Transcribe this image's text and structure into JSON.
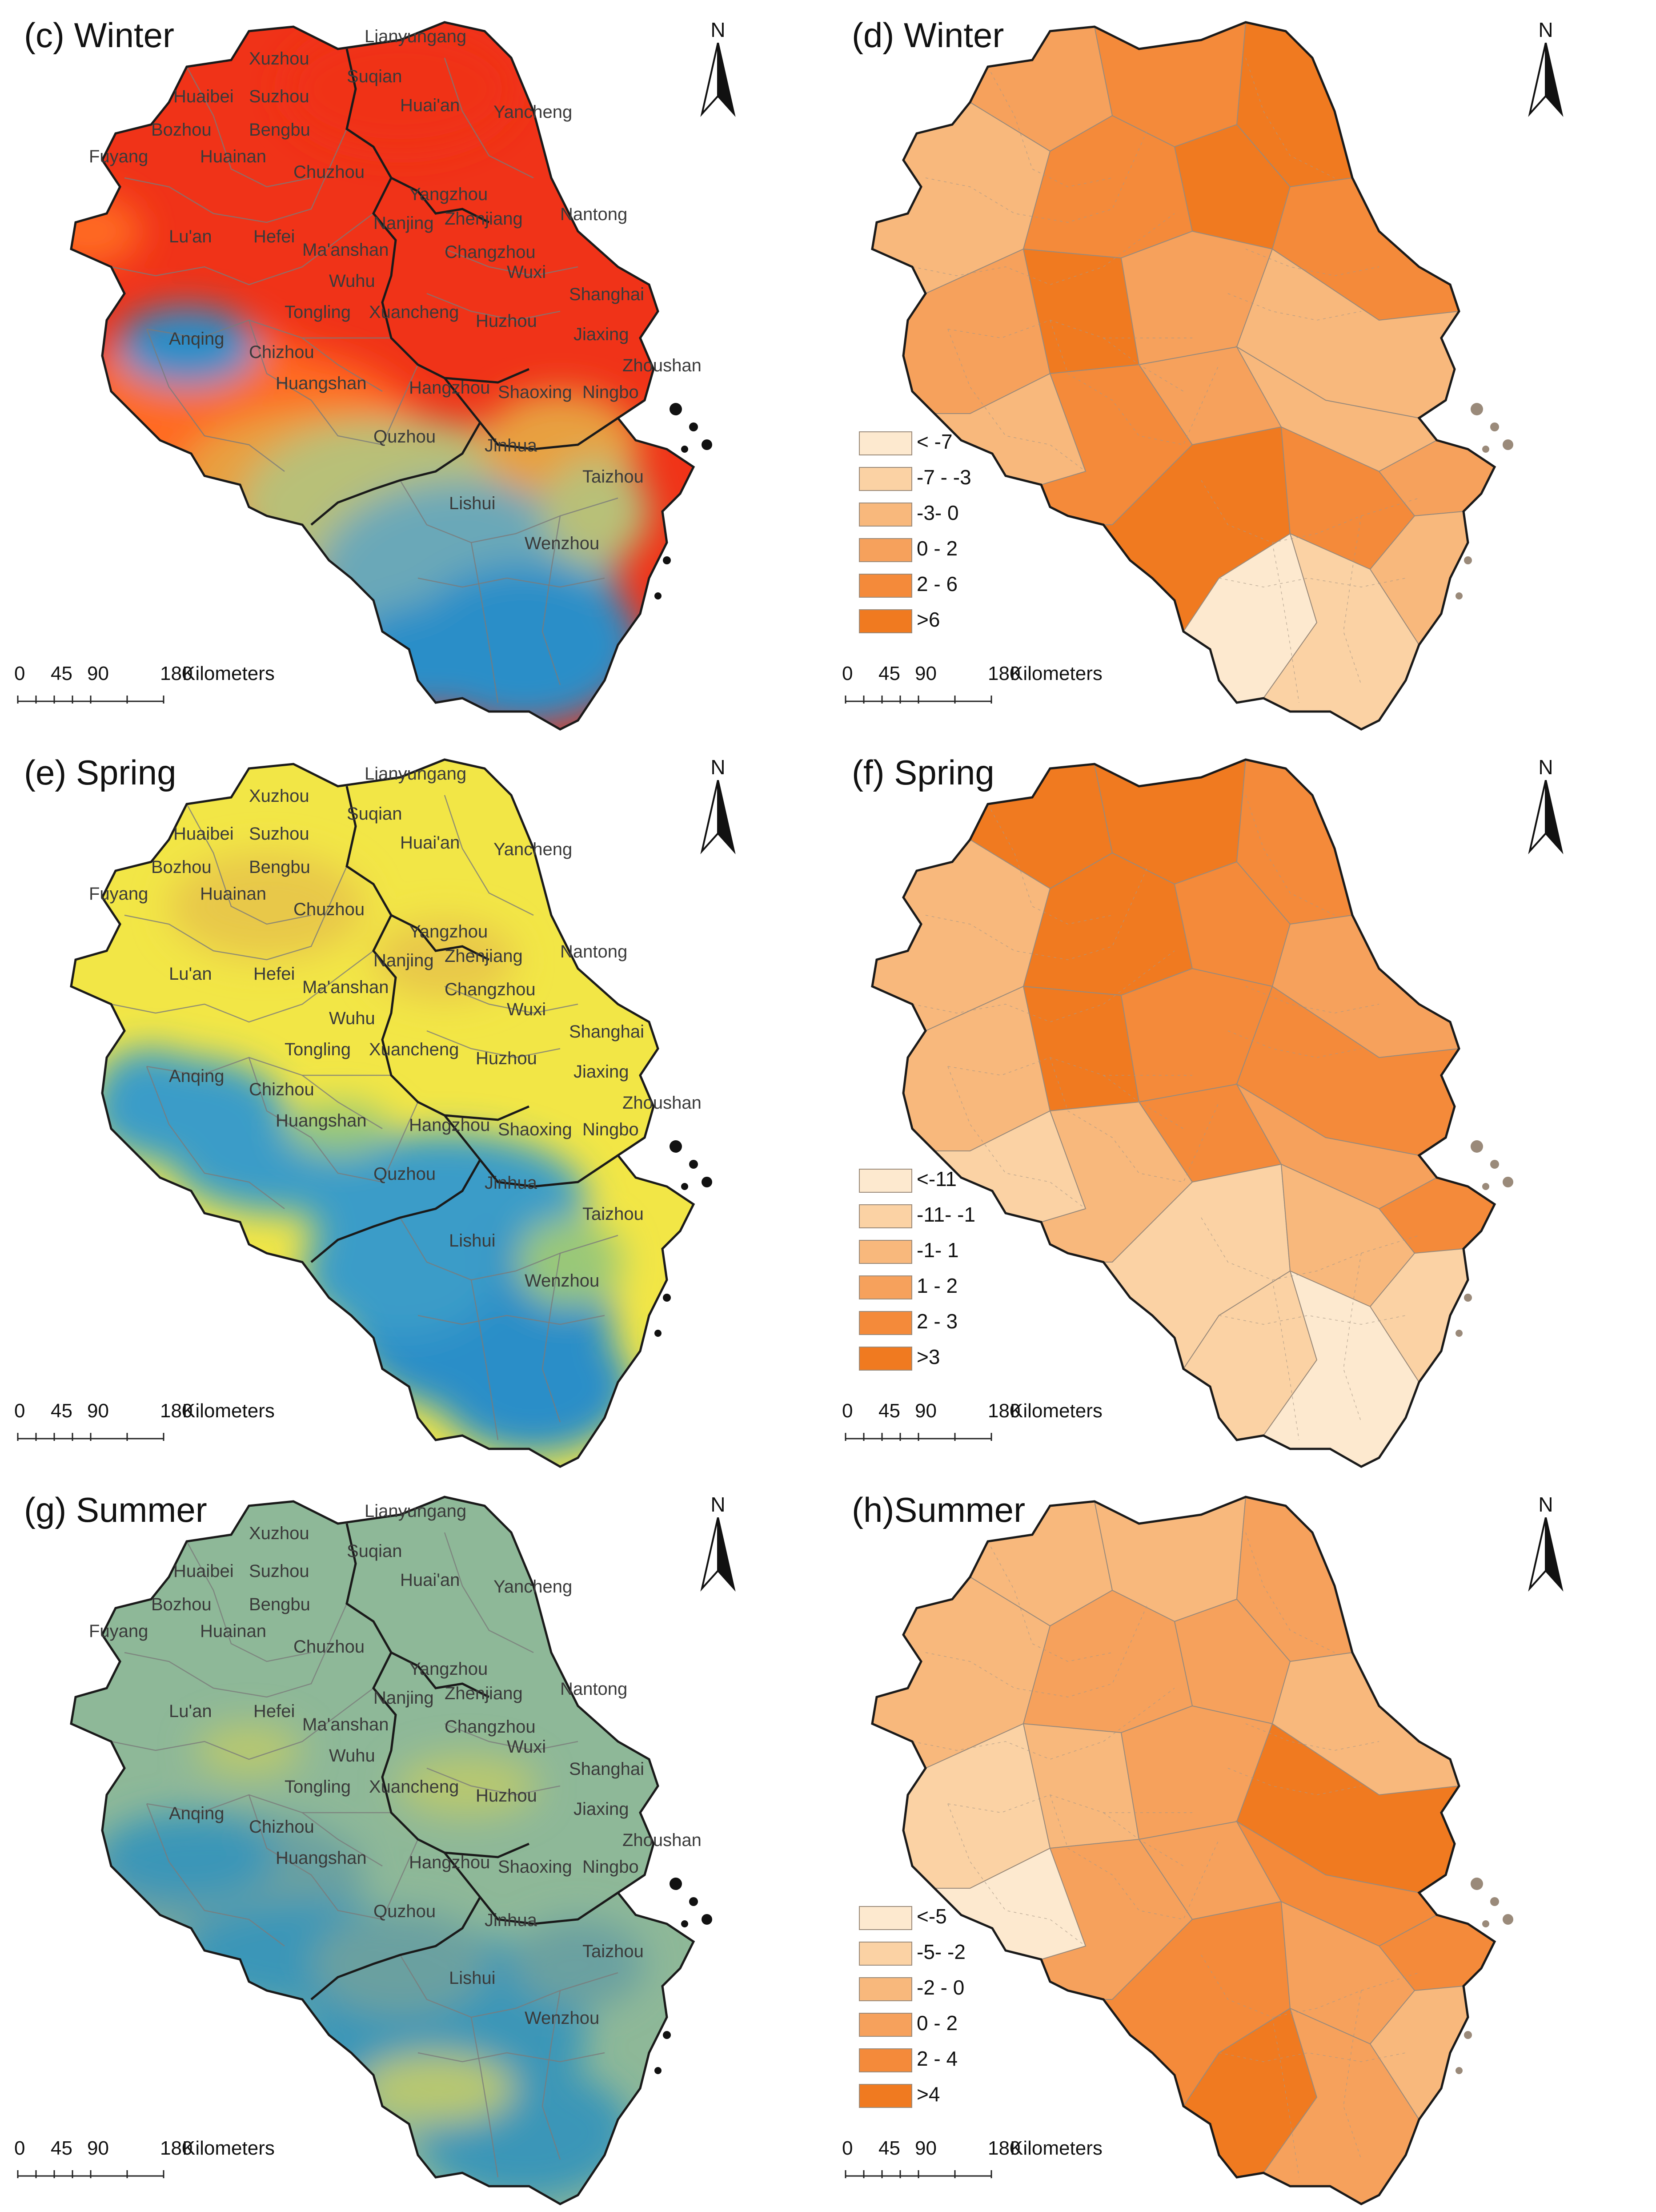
{
  "cities": [
    "Lianyungang",
    "Xuzhou",
    "Suqian",
    "Huaibei",
    "Suzhou",
    "Huai'an",
    "Yancheng",
    "Bozhou",
    "Bengbu",
    "Fuyang",
    "Huainan",
    "Chuzhou",
    "Yangzhou",
    "Nantong",
    "Nanjing",
    "Zhenjiang",
    "Lu'an",
    "Hefei",
    "Ma'anshan",
    "Changzhou",
    "Wuxi",
    "Wuhu",
    "Shanghai",
    "Tongling",
    "Xuancheng",
    "Huzhou",
    "Jiaxing",
    "Anqing",
    "Chizhou",
    "Zhoushan",
    "Huangshan",
    "Hangzhou",
    "Shaoxing",
    "Ningbo",
    "Quzhou",
    "Jinhua",
    "Taizhou",
    "Lishui",
    "Wenzhou"
  ],
  "north_label": "N",
  "scale_bar": {
    "ticks": [
      "0",
      "45",
      "90",
      "180"
    ],
    "unit": "Kilometers"
  },
  "colors": {
    "winter_raster": [
      "#f03318",
      "#ff6a22",
      "#e8a040",
      "#b8c078",
      "#6aa8b8",
      "#2a8ec8"
    ],
    "spring_raster": [
      "#f2e646",
      "#e8c84a",
      "#9ac878",
      "#3a9cc8",
      "#2a8ec8"
    ],
    "summer_raster": [
      "#8eb898",
      "#6aa0a0",
      "#3a96b8",
      "#b8c870"
    ],
    "choropleth": [
      "#fde9cf",
      "#fbd2a4",
      "#f8b87c",
      "#f6a15c",
      "#f48a3a",
      "#f07a20"
    ],
    "outline": "#1a1a1a",
    "district_lines": "#7a7a7a"
  },
  "panels": [
    {
      "id": "c",
      "title": "(c) Winter",
      "type": "raster"
    },
    {
      "id": "d",
      "title": "(d) Winter",
      "type": "choropleth",
      "legend": [
        "< -7",
        "-7 - -3",
        "-3- 0",
        "0 - 2",
        "2 - 6",
        ">6"
      ]
    },
    {
      "id": "e",
      "title": "(e) Spring",
      "type": "raster"
    },
    {
      "id": "f",
      "title": "(f) Spring",
      "type": "choropleth",
      "legend": [
        "<-11",
        "-11- -1",
        "-1- 1",
        "1 - 2",
        "2 - 3",
        ">3"
      ]
    },
    {
      "id": "g",
      "title": "(g) Summer",
      "type": "raster"
    },
    {
      "id": "h",
      "title": "(h)Summer",
      "type": "choropleth",
      "legend": [
        "<-5",
        "-5- -2",
        "-2 - 0",
        "0 - 2",
        "2 - 4",
        ">4"
      ]
    }
  ]
}
